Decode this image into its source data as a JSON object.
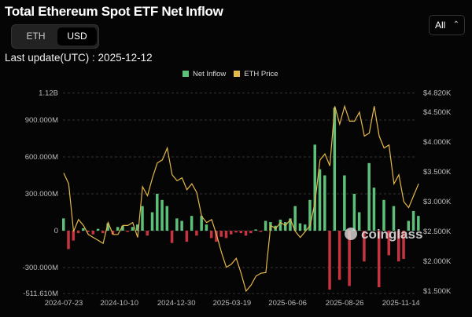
{
  "header": {
    "title": "Total Ethereum Spot ETF Net Inflow",
    "last_update": "Last update(UTC) : 2025-12-12"
  },
  "unit_toggle": {
    "options": [
      "ETH",
      "USD"
    ],
    "selected": "USD"
  },
  "range_select": {
    "value": "All",
    "icon": "chevron-up-down-icon"
  },
  "watermark": "coinglass",
  "chart_data": {
    "type": "bar+line",
    "legend": [
      {
        "name": "Net Inflow",
        "color": "#5dbf7a"
      },
      {
        "name": "ETH Price",
        "color": "#e6b84a"
      }
    ],
    "legend_position": "top",
    "negative_color": "#c7343f",
    "grid": true,
    "x_ticks": [
      "2024-07-23",
      "2024-10-10",
      "2024-12-30",
      "2025-03-19",
      "2025-06-06",
      "2025-08-26",
      "2025-11-14"
    ],
    "y_left_ticks": [
      "1.12B",
      "900.000M",
      "600.000M",
      "300.000M",
      "0",
      "-300.000M",
      "-511.610M"
    ],
    "y_left_range": [
      -511.61,
      1120
    ],
    "y_left_unit": "M USD",
    "y_right_ticks": [
      "$4.820K",
      "$4.500K",
      "$4.000K",
      "$3.500K",
      "$3.000K",
      "$2.500K",
      "$2.000K",
      "$1.500K"
    ],
    "dates": [
      "2024-07-23",
      "2024-07-30",
      "2024-08-06",
      "2024-08-13",
      "2024-08-20",
      "2024-08-27",
      "2024-09-03",
      "2024-09-10",
      "2024-09-17",
      "2024-09-24",
      "2024-10-01",
      "2024-10-08",
      "2024-10-15",
      "2024-10-22",
      "2024-10-29",
      "2024-11-05",
      "2024-11-12",
      "2024-11-19",
      "2024-11-26",
      "2024-12-03",
      "2024-12-10",
      "2024-12-17",
      "2024-12-24",
      "2024-12-31",
      "2025-01-07",
      "2025-01-14",
      "2025-01-21",
      "2025-01-28",
      "2025-02-04",
      "2025-02-11",
      "2025-02-18",
      "2025-02-25",
      "2025-03-04",
      "2025-03-11",
      "2025-03-18",
      "2025-03-25",
      "2025-04-01",
      "2025-04-08",
      "2025-04-15",
      "2025-04-22",
      "2025-04-29",
      "2025-05-06",
      "2025-05-13",
      "2025-05-20",
      "2025-05-27",
      "2025-06-03",
      "2025-06-10",
      "2025-06-17",
      "2025-06-24",
      "2025-07-01",
      "2025-07-08",
      "2025-07-15",
      "2025-07-22",
      "2025-07-29",
      "2025-08-05",
      "2025-08-12",
      "2025-08-19",
      "2025-08-26",
      "2025-09-02",
      "2025-09-09",
      "2025-09-16",
      "2025-09-23",
      "2025-09-30",
      "2025-10-07",
      "2025-10-14",
      "2025-10-21",
      "2025-10-28",
      "2025-11-04",
      "2025-11-11",
      "2025-11-18",
      "2025-11-25",
      "2025-12-02",
      "2025-12-09"
    ],
    "series": [
      {
        "name": "Net Inflow",
        "unit": "M USD",
        "values": [
          100,
          -150,
          -80,
          -20,
          20,
          -10,
          -30,
          15,
          -20,
          60,
          -30,
          30,
          40,
          -10,
          30,
          50,
          200,
          -40,
          150,
          300,
          250,
          200,
          -100,
          100,
          80,
          -90,
          120,
          -40,
          120,
          50,
          -60,
          -90,
          -50,
          -60,
          -30,
          -15,
          -20,
          -40,
          -20,
          10,
          -10,
          80,
          70,
          40,
          90,
          70,
          100,
          200,
          60,
          50,
          250,
          700,
          500,
          450,
          -480,
          1000,
          -400,
          450,
          -450,
          300,
          150,
          -250,
          550,
          350,
          -460,
          250,
          -200,
          200,
          -250,
          -230,
          80,
          160,
          120
        ]
      },
      {
        "name": "ETH Price",
        "unit": "USD",
        "values": [
          3480,
          3300,
          2500,
          2700,
          2600,
          2450,
          2400,
          2350,
          2300,
          2650,
          2450,
          2450,
          2600,
          2600,
          2650,
          2400,
          3250,
          3100,
          3400,
          3650,
          3700,
          3900,
          3450,
          3350,
          3400,
          3200,
          3300,
          3150,
          2750,
          2650,
          2700,
          2450,
          2150,
          1900,
          1950,
          2050,
          1800,
          1500,
          1600,
          1750,
          1800,
          1810,
          2600,
          2550,
          2650,
          2600,
          2700,
          2500,
          2400,
          2500,
          2600,
          3000,
          3700,
          3800,
          3600,
          4600,
          4300,
          4600,
          4350,
          4350,
          4500,
          4100,
          4150,
          4600,
          4100,
          3900,
          3950,
          3300,
          3450,
          3000,
          2900,
          3100,
          3300
        ]
      }
    ]
  }
}
